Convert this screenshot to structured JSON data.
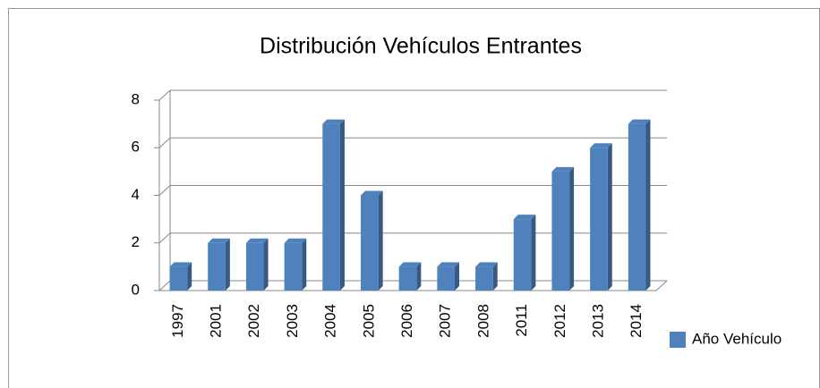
{
  "chart_data": {
    "type": "bar",
    "title": "Distribución Vehículos Entrantes",
    "categories": [
      "1997",
      "2001",
      "2002",
      "2003",
      "2004",
      "2005",
      "2006",
      "2007",
      "2008",
      "2011",
      "2012",
      "2013",
      "2014"
    ],
    "series": [
      {
        "name": "Año Vehículo",
        "color": "#4f81bd",
        "values": [
          1,
          2,
          2,
          2,
          7,
          4,
          1,
          1,
          1,
          3,
          5,
          6,
          7
        ]
      }
    ],
    "ylim": [
      0,
      8
    ],
    "yticks": [
      0,
      2,
      4,
      6,
      8
    ],
    "grid": true,
    "legend": "right"
  }
}
